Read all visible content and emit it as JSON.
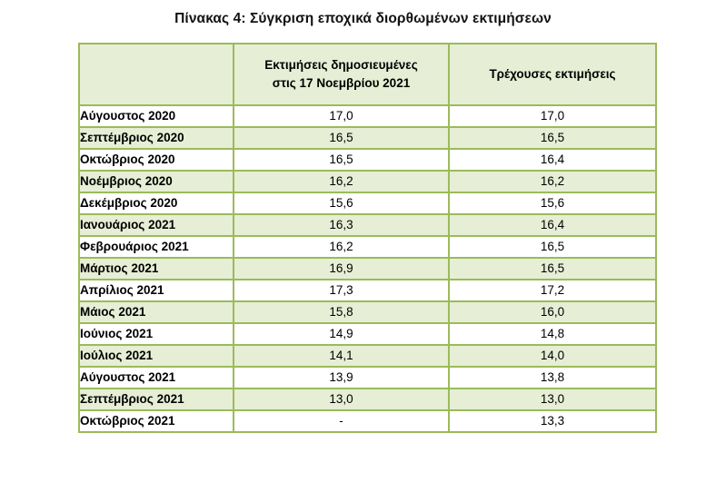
{
  "title": "Πίνακας 4: Σύγκριση εποχικά διορθωμένων εκτιμήσεων",
  "table": {
    "headers": [
      "",
      "Εκτιμήσεις δημοσιευμένες στις 17 Νοεμβρίου 2021",
      "Τρέχουσες εκτιμήσεις"
    ],
    "header_line1": "Εκτιμήσεις δημοσιευμένες",
    "header_line2": "στις 17 Νοεμβρίου 2021",
    "rows": [
      {
        "month": "Αύγουστος 2020",
        "published": "17,0",
        "current": "17,0"
      },
      {
        "month": "Σεπτέμβριος 2020",
        "published": "16,5",
        "current": "16,5"
      },
      {
        "month": "Οκτώβριος 2020",
        "published": "16,5",
        "current": "16,4"
      },
      {
        "month": "Νοέμβριος 2020",
        "published": "16,2",
        "current": "16,2"
      },
      {
        "month": "Δεκέμβριος 2020",
        "published": "15,6",
        "current": "15,6"
      },
      {
        "month": "Ιανουάριος 2021",
        "published": "16,3",
        "current": "16,4"
      },
      {
        "month": "Φεβρουάριος 2021",
        "published": "16,2",
        "current": "16,5"
      },
      {
        "month": "Μάρτιος 2021",
        "published": "16,9",
        "current": "16,5"
      },
      {
        "month": "Απρίλιος 2021",
        "published": "17,3",
        "current": "17,2"
      },
      {
        "month": "Μάιος 2021",
        "published": "15,8",
        "current": "16,0"
      },
      {
        "month": "Ιούνιος 2021",
        "published": "14,9",
        "current": "14,8"
      },
      {
        "month": "Ιούλιος 2021",
        "published": "14,1",
        "current": "14,0"
      },
      {
        "month": "Αύγουστος 2021",
        "published": "13,9",
        "current": "13,8"
      },
      {
        "month": "Σεπτέμβριος 2021",
        "published": "13,0",
        "current": "13,0"
      },
      {
        "month": "Οκτώβριος 2021",
        "published": "-",
        "current": "13,3"
      }
    ]
  },
  "colors": {
    "border": "#9bbb59",
    "shaded_fill": "#e6eed5",
    "plain_fill": "#ffffff"
  }
}
